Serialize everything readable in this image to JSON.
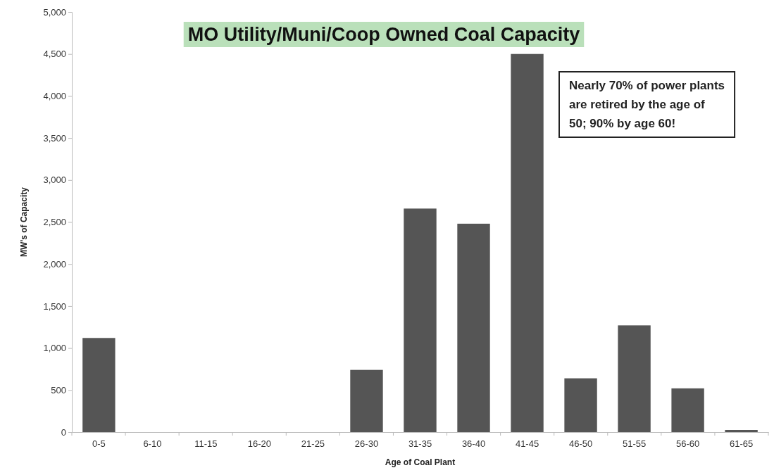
{
  "chart_data": {
    "type": "bar",
    "title": "MO Utility/Muni/Coop Owned Coal Capacity",
    "xlabel": "Age of Coal Plant",
    "ylabel": "MW's of Capacity",
    "categories": [
      "0-5",
      "6-10",
      "11-15",
      "16-20",
      "21-25",
      "26-30",
      "31-35",
      "36-40",
      "41-45",
      "46-50",
      "51-55",
      "56-60",
      "61-65"
    ],
    "values": [
      1120,
      0,
      0,
      0,
      0,
      740,
      2660,
      2480,
      4500,
      640,
      1270,
      520,
      25
    ],
    "color": "#555555",
    "ylim": [
      0,
      5000
    ],
    "yticks": [
      {
        "value": 0,
        "label": "0"
      },
      {
        "value": 500,
        "label": "500"
      },
      {
        "value": 1000,
        "label": "1,000"
      },
      {
        "value": 1500,
        "label": "1,500"
      },
      {
        "value": 2000,
        "label": "2,000"
      },
      {
        "value": 2500,
        "label": "2,500"
      },
      {
        "value": 3000,
        "label": "3,000"
      },
      {
        "value": 3500,
        "label": "3,500"
      },
      {
        "value": 4000,
        "label": "4,000"
      },
      {
        "value": 4500,
        "label": "4,500"
      },
      {
        "value": 5000,
        "label": "5,000"
      }
    ],
    "annotations": [
      "Nearly 70% of power plants are retired by the age of 50; 90% by age 60!"
    ]
  }
}
